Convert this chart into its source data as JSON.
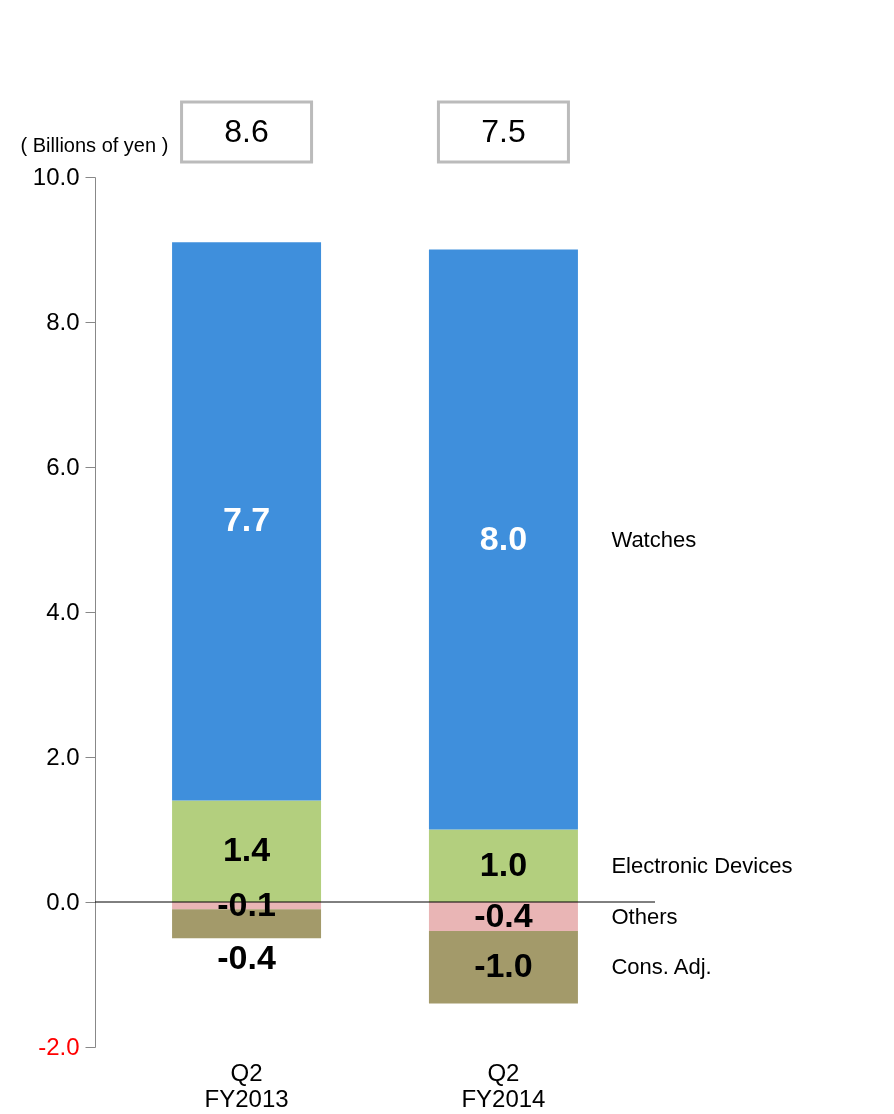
{
  "chart_data": {
    "type": "bar",
    "stacked": true,
    "ylabel": "( Billions of yen )",
    "categories": [
      "Q2 FY2013",
      "Q2 FY2014"
    ],
    "series": [
      {
        "name": "Electronic Devices",
        "color": "#b3cf7e",
        "values": [
          1.4,
          1.0
        ],
        "value_labels": [
          "1.4",
          "1.0"
        ]
      },
      {
        "name": "Watches",
        "color": "#3f8fdc",
        "values": [
          7.7,
          8.0
        ],
        "value_labels": [
          "7.7",
          "8.0"
        ]
      },
      {
        "name": "Others",
        "color": "#e9b5b5",
        "values": [
          -0.1,
          -0.4
        ],
        "value_labels": [
          "-0.1",
          "-0.4"
        ]
      },
      {
        "name": "Cons. Adj.",
        "color": "#a39a6a",
        "values": [
          -0.4,
          -1.0
        ],
        "value_labels": [
          "-0.4",
          "-1.0"
        ]
      }
    ],
    "ylim": [
      -2,
      10
    ],
    "yticks": [
      {
        "value": -2,
        "label": "-2.0"
      },
      {
        "value": 0,
        "label": "0.0"
      },
      {
        "value": 2,
        "label": "2.0"
      },
      {
        "value": 4,
        "label": "4.0"
      },
      {
        "value": 6,
        "label": "6.0"
      },
      {
        "value": 8,
        "label": "8.0"
      },
      {
        "value": 10,
        "label": "10.0"
      }
    ],
    "totals": [
      "8.6",
      "7.5"
    ]
  }
}
